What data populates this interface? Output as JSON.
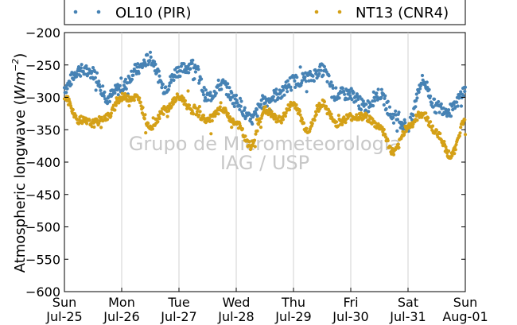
{
  "chart_data": {
    "type": "scatter",
    "title": "",
    "ylabel": "Atmospheric longwave",
    "ylabel_unit_base": "W",
    "ylabel_unit_sub": "m",
    "ylabel_unit_exp": "−2",
    "xlabel": "",
    "ylim": [
      -600,
      -200
    ],
    "yticks": [
      -200,
      -250,
      -300,
      -350,
      -400,
      -450,
      -500,
      -550,
      -600
    ],
    "ytick_labels": [
      "−200",
      "−250",
      "−300",
      "−350",
      "−400",
      "−450",
      "−500",
      "−550",
      "−600"
    ],
    "xlim": [
      "2010-07-25",
      "2010-08-01"
    ],
    "xticks": [
      {
        "day": "Sun",
        "date": "Jul-25"
      },
      {
        "day": "Mon",
        "date": "Jul-26"
      },
      {
        "day": "Tue",
        "date": "Jul-27"
      },
      {
        "day": "Wed",
        "date": "Jul-28"
      },
      {
        "day": "Thu",
        "date": "Jul-29"
      },
      {
        "day": "Fri",
        "date": "Jul-30"
      },
      {
        "day": "Sat",
        "date": "Jul-31"
      },
      {
        "day": "Sun",
        "date": "Aug-01"
      }
    ],
    "grid": "vertical",
    "legend_position": "top-outside",
    "watermark": [
      "Grupo de Micrometeorologia",
      "IAG / USP"
    ],
    "series": [
      {
        "name": "OL10 (PIR)",
        "color": "#4682b4",
        "x_days": [
          0.0,
          0.25,
          0.5,
          0.75,
          1.0,
          1.25,
          1.5,
          1.75,
          2.0,
          2.25,
          2.5,
          2.75,
          3.0,
          3.25,
          3.5,
          3.75,
          4.0,
          4.25,
          4.5,
          4.75,
          5.0,
          5.25,
          5.5,
          5.75,
          6.0,
          6.25,
          6.5,
          6.75,
          7.0
        ],
        "values": [
          -285,
          -258,
          -262,
          -300,
          -285,
          -258,
          -240,
          -285,
          -258,
          -250,
          -300,
          -280,
          -305,
          -335,
          -305,
          -295,
          -275,
          -270,
          -258,
          -295,
          -295,
          -315,
          -295,
          -330,
          -345,
          -275,
          -315,
          -320,
          -290
        ]
      },
      {
        "name": "NT13 (CNR4)",
        "color": "#d4a017",
        "x_days": [
          0.0,
          0.25,
          0.5,
          0.75,
          1.0,
          1.25,
          1.5,
          1.75,
          2.0,
          2.25,
          2.5,
          2.75,
          3.0,
          3.25,
          3.5,
          3.75,
          4.0,
          4.25,
          4.5,
          4.75,
          5.0,
          5.25,
          5.5,
          5.75,
          6.0,
          6.25,
          6.5,
          6.75,
          7.0
        ],
        "values": [
          -300,
          -335,
          -340,
          -330,
          -300,
          -300,
          -345,
          -320,
          -300,
          -320,
          -335,
          -320,
          -340,
          -375,
          -320,
          -335,
          -310,
          -350,
          -310,
          -340,
          -330,
          -330,
          -345,
          -385,
          -345,
          -325,
          -355,
          -390,
          -335
        ]
      }
    ]
  }
}
